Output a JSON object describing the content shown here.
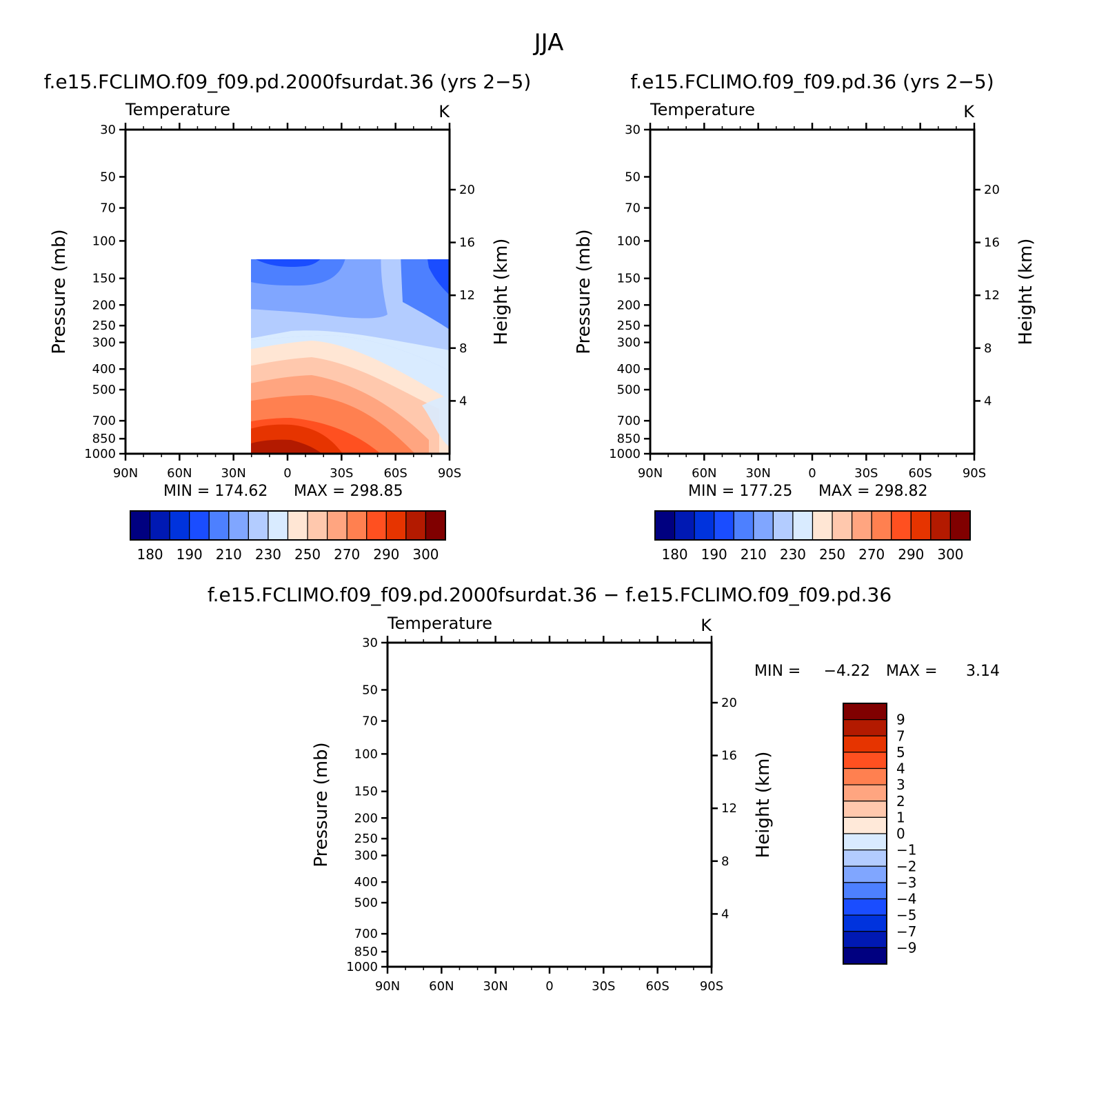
{
  "figure": {
    "title": "JJA"
  },
  "colors": {
    "abs": [
      "#000080",
      "#0019b3",
      "#0033dd",
      "#1a4dff",
      "#4d80ff",
      "#80a6ff",
      "#b3ccff",
      "#d9ebff",
      "#ffe6d4",
      "#ffc8ad",
      "#ffa580",
      "#ff8050",
      "#ff5020",
      "#e63400",
      "#b31a00",
      "#800000"
    ],
    "diff": [
      "#000080",
      "#0019b3",
      "#0033dd",
      "#1a4dff",
      "#4d80ff",
      "#80a6ff",
      "#b3ccff",
      "#d9ebff",
      "#ffe9d9",
      "#ffc8ad",
      "#ffa580",
      "#ff8050",
      "#ff5020",
      "#e63400",
      "#b31a00",
      "#800000"
    ]
  },
  "chart_data": [
    {
      "type": "heatmap",
      "title": "f.e15.FCLIMO.f09_f09.pd.2000fsurdat.36 (yrs 2−5)",
      "subtitle_left": "Temperature",
      "subtitle_right": "K",
      "ylabel": "Pressure (mb)",
      "ylabel_right": "Height (km)",
      "x_ticks": [
        "90N",
        "60N",
        "30N",
        "0",
        "30S",
        "60S",
        "90S"
      ],
      "y_ticks": [
        "30",
        "50",
        "70",
        "100",
        "150",
        "200",
        "250",
        "300",
        "400",
        "500",
        "700",
        "850",
        "1000"
      ],
      "height_ticks": [
        "20",
        "16",
        "12",
        "8",
        "4"
      ],
      "min_label": "MIN = 174.62",
      "max_label": "MAX = 298.85",
      "stats": {
        "min": 174.62,
        "max": 298.85
      },
      "colorbar_labels": [
        "180",
        "190",
        "210",
        "230",
        "250",
        "270",
        "290",
        "300"
      ],
      "levels": [
        180,
        185,
        190,
        200,
        210,
        220,
        230,
        240,
        250,
        260,
        270,
        280,
        290,
        295,
        300
      ]
    },
    {
      "type": "heatmap",
      "title": "f.e15.FCLIMO.f09_f09.pd.36 (yrs 2−5)",
      "subtitle_left": "Temperature",
      "subtitle_right": "K",
      "ylabel": "Pressure (mb)",
      "ylabel_right": "Height (km)",
      "x_ticks": [
        "90N",
        "60N",
        "30N",
        "0",
        "30S",
        "60S",
        "90S"
      ],
      "y_ticks": [
        "30",
        "50",
        "70",
        "100",
        "150",
        "200",
        "250",
        "300",
        "400",
        "500",
        "700",
        "850",
        "1000"
      ],
      "height_ticks": [
        "20",
        "16",
        "12",
        "8",
        "4"
      ],
      "min_label": "MIN = 177.25",
      "max_label": "MAX = 298.82",
      "stats": {
        "min": 177.25,
        "max": 298.82
      },
      "colorbar_labels": [
        "180",
        "190",
        "210",
        "230",
        "250",
        "270",
        "290",
        "300"
      ],
      "levels": [
        180,
        185,
        190,
        200,
        210,
        220,
        230,
        240,
        250,
        260,
        270,
        280,
        290,
        295,
        300
      ]
    },
    {
      "type": "heatmap",
      "title": "f.e15.FCLIMO.f09_f09.pd.2000fsurdat.36 − f.e15.FCLIMO.f09_f09.pd.36",
      "subtitle_left": "Temperature",
      "subtitle_right": "K",
      "ylabel": "Pressure (mb)",
      "ylabel_right": "Height (km)",
      "x_ticks": [
        "90N",
        "60N",
        "30N",
        "0",
        "30S",
        "60S",
        "90S"
      ],
      "y_ticks": [
        "30",
        "50",
        "70",
        "100",
        "150",
        "200",
        "250",
        "300",
        "400",
        "500",
        "700",
        "850",
        "1000"
      ],
      "height_ticks": [
        "20",
        "16",
        "12",
        "8",
        "4"
      ],
      "min_label": "MIN =",
      "min_value": "−4.22",
      "max_label": "MAX =",
      "max_value": "3.14",
      "stats": {
        "min": -4.22,
        "max": 3.14
      },
      "colorbar_labels": [
        "9",
        "7",
        "5",
        "4",
        "3",
        "2",
        "1",
        "0",
        "−1",
        "−2",
        "−3",
        "−4",
        "−5",
        "−7",
        "−9"
      ],
      "levels": [
        -9,
        -7,
        -5,
        -4,
        -3,
        -2,
        -1,
        0,
        1,
        2,
        3,
        4,
        5,
        7,
        9
      ]
    }
  ]
}
